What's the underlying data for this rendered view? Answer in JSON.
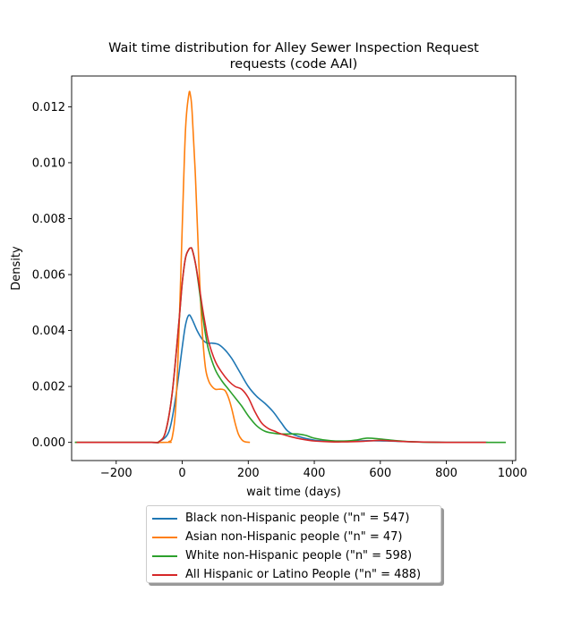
{
  "chart_data": {
    "type": "line",
    "title_line1": "Wait time distribution  for Alley Sewer Inspection Request",
    "title_line2": "requests (code AAI)",
    "xlabel": "wait time (days)",
    "ylabel": "Density",
    "xlim": [
      -335,
      1010
    ],
    "ylim": [
      -0.00065,
      0.0131
    ],
    "xticks": [
      -200,
      0,
      200,
      400,
      600,
      800,
      1000
    ],
    "xtick_labels": [
      "−200",
      "0",
      "200",
      "400",
      "600",
      "800",
      "1000"
    ],
    "yticks": [
      0.0,
      0.002,
      0.004,
      0.006,
      0.008,
      0.01,
      0.012
    ],
    "ytick_labels": [
      "0.000",
      "0.002",
      "0.004",
      "0.006",
      "0.008",
      "0.010",
      "0.012"
    ],
    "legend_position": "below-center",
    "series": [
      {
        "name": "Black non-Hispanic people (\"n\" = 547)",
        "color": "#1f77b4",
        "x": [
          -325,
          -100,
          -70,
          -40,
          -20,
          0,
          10,
          20,
          30,
          45,
          60,
          75,
          90,
          110,
          130,
          150,
          175,
          200,
          225,
          250,
          275,
          300,
          320,
          350,
          400,
          450,
          500,
          560,
          620,
          700,
          800,
          925
        ],
        "y": [
          0,
          0,
          3e-05,
          0.0004,
          0.0016,
          0.0034,
          0.0042,
          0.00455,
          0.0044,
          0.004,
          0.0037,
          0.00355,
          0.00355,
          0.0035,
          0.0033,
          0.003,
          0.0025,
          0.002,
          0.00165,
          0.0014,
          0.0011,
          0.0007,
          0.0004,
          0.00022,
          8e-05,
          4e-05,
          3e-05,
          6e-05,
          5e-05,
          2e-05,
          0,
          0
        ]
      },
      {
        "name": "Asian non-Hispanic people (\"n\" = 47)",
        "color": "#ff7f0e",
        "x": [
          -325,
          -60,
          -40,
          -30,
          -20,
          -10,
          0,
          10,
          20,
          25,
          30,
          40,
          50,
          60,
          70,
          80,
          90,
          100,
          110,
          120,
          130,
          140,
          150,
          160,
          170,
          180,
          190,
          205
        ],
        "y": [
          0,
          0,
          3e-05,
          0.0002,
          0.0012,
          0.0039,
          0.0077,
          0.0112,
          0.01245,
          0.0124,
          0.0118,
          0.0095,
          0.0065,
          0.0041,
          0.0027,
          0.0022,
          0.002,
          0.0019,
          0.0019,
          0.0019,
          0.00185,
          0.0016,
          0.0012,
          0.0007,
          0.0003,
          0.0001,
          2e-05,
          0
        ]
      },
      {
        "name": "White non-Hispanic people (\"n\" = 598)",
        "color": "#2ca02c",
        "x": [
          -325,
          -100,
          -70,
          -50,
          -30,
          -10,
          0,
          10,
          20,
          25,
          30,
          40,
          50,
          60,
          70,
          80,
          100,
          120,
          140,
          160,
          180,
          200,
          225,
          250,
          275,
          300,
          325,
          350,
          375,
          400,
          450,
          500,
          530,
          560,
          600,
          650,
          700,
          800,
          980
        ],
        "y": [
          0,
          0,
          3e-05,
          0.0004,
          0.0018,
          0.0043,
          0.0057,
          0.0066,
          0.0069,
          0.00695,
          0.0069,
          0.0064,
          0.0056,
          0.0047,
          0.0039,
          0.0033,
          0.0026,
          0.0022,
          0.0019,
          0.0016,
          0.0013,
          0.00095,
          0.0006,
          0.0004,
          0.00033,
          0.0003,
          0.0003,
          0.0003,
          0.00025,
          0.00015,
          6e-05,
          5e-05,
          9e-05,
          0.00015,
          0.00012,
          6e-05,
          2e-05,
          0,
          0
        ]
      },
      {
        "name": "All Hispanic or Latino People (\"n\" = 488)",
        "color": "#d62728",
        "x": [
          -320,
          -100,
          -70,
          -50,
          -30,
          -10,
          0,
          10,
          20,
          25,
          30,
          40,
          50,
          60,
          70,
          80,
          100,
          120,
          140,
          160,
          180,
          200,
          220,
          240,
          260,
          280,
          300,
          330,
          360,
          400,
          450,
          500,
          550,
          600,
          640,
          700,
          800,
          920
        ],
        "y": [
          0,
          0,
          3e-05,
          0.0004,
          0.0018,
          0.0043,
          0.0057,
          0.0066,
          0.0069,
          0.00695,
          0.0069,
          0.0064,
          0.0057,
          0.0049,
          0.0042,
          0.0036,
          0.0029,
          0.0025,
          0.0022,
          0.002,
          0.0019,
          0.0016,
          0.0011,
          0.0007,
          0.0005,
          0.0004,
          0.0003,
          0.0002,
          0.00012,
          5e-05,
          2e-05,
          2e-05,
          4e-05,
          7e-05,
          5e-05,
          2e-05,
          0,
          0
        ]
      }
    ]
  }
}
